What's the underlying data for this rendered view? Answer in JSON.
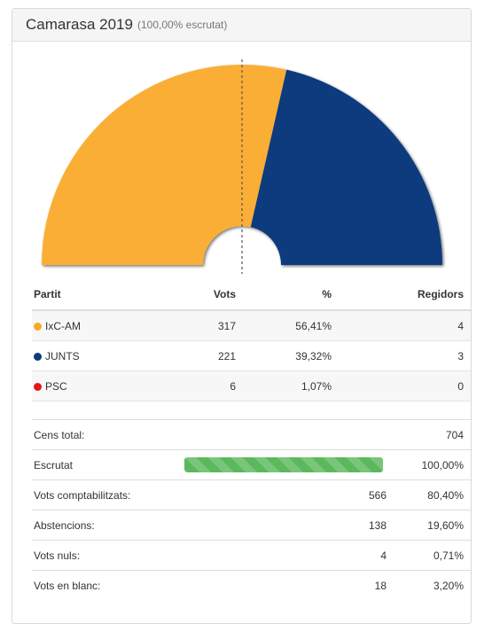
{
  "header": {
    "title": "Camarasa 2019",
    "subtitle": "(100,00% escrutat)"
  },
  "chart_data": {
    "type": "pie",
    "shape": "semicircle-donut",
    "majority_line": "dashed vertical at 50%",
    "series": [
      {
        "name": "IxC-AM",
        "value": 4,
        "color": "#fbae35"
      },
      {
        "name": "JUNTS",
        "value": 3,
        "color": "#0d3a7d"
      },
      {
        "name": "PSC",
        "value": 0,
        "color": "#e2161c"
      }
    ],
    "total": 7
  },
  "results": {
    "headers": {
      "party": "Partit",
      "votes": "Vots",
      "pct": "%",
      "seats": "Regidors"
    },
    "rows": [
      {
        "party": "IxC-AM",
        "votes": "317",
        "pct": "56,41%",
        "seats": "4",
        "color": "#f9a825"
      },
      {
        "party": "JUNTS",
        "votes": "221",
        "pct": "39,32%",
        "seats": "3",
        "color": "#0d3a7d"
      },
      {
        "party": "PSC",
        "votes": "6",
        "pct": "1,07%",
        "seats": "0",
        "color": "#e2161c"
      }
    ]
  },
  "stats": {
    "census_label": "Cens total:",
    "census_value": "704",
    "counted_label": "Escrutat",
    "counted_progress": 100,
    "counted_value": "100,00%",
    "rows": [
      {
        "label": "Vots comptabilitzats:",
        "count": "566",
        "pct": "80,40%"
      },
      {
        "label": "Abstencions:",
        "count": "138",
        "pct": "19,60%"
      },
      {
        "label": "Vots nuls:",
        "count": "4",
        "pct": "0,71%"
      },
      {
        "label": "Vots en blanc:",
        "count": "18",
        "pct": "3,20%"
      }
    ]
  }
}
